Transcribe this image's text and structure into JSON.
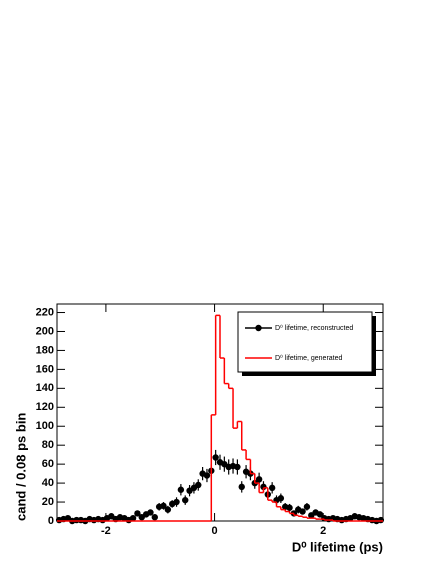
{
  "chart_data": {
    "type": "histogram",
    "x_label": "D⁰ lifetime (ps)",
    "y_label": "cand / 0.08 ps bin",
    "xlim": [
      -2.9,
      3.1
    ],
    "xticks": [
      -2,
      0,
      2
    ],
    "ylim": [
      0,
      229
    ],
    "yticks": [
      0,
      20,
      40,
      60,
      80,
      100,
      120,
      140,
      160,
      180,
      200,
      220
    ],
    "legend": "upper right",
    "series": [
      {
        "name": "D⁰ lifetime, reconstructed",
        "type": "errorbar",
        "color": "#000000",
        "x": [
          -2.86,
          -2.78,
          -2.7,
          -2.62,
          -2.54,
          -2.46,
          -2.38,
          -2.3,
          -2.22,
          -2.14,
          -2.06,
          -1.98,
          -1.9,
          -1.82,
          -1.74,
          -1.66,
          -1.58,
          -1.5,
          -1.42,
          -1.34,
          -1.26,
          -1.18,
          -1.1,
          -1.02,
          -0.94,
          -0.86,
          -0.78,
          -0.7,
          -0.62,
          -0.54,
          -0.46,
          -0.38,
          -0.3,
          -0.22,
          -0.14,
          -0.06,
          0.02,
          0.1,
          0.18,
          0.26,
          0.34,
          0.42,
          0.5,
          0.58,
          0.66,
          0.74,
          0.82,
          0.9,
          0.98,
          1.06,
          1.14,
          1.22,
          1.3,
          1.38,
          1.46,
          1.54,
          1.62,
          1.7,
          1.78,
          1.86,
          1.94,
          2.02,
          2.1,
          2.18,
          2.26,
          2.34,
          2.42,
          2.5,
          2.58,
          2.66,
          2.74,
          2.82,
          2.9,
          2.98,
          3.06
        ],
        "values": [
          1,
          2,
          3,
          0,
          1,
          1,
          0,
          2,
          1,
          2,
          1,
          3,
          5,
          2,
          4,
          3,
          1,
          3,
          8,
          4,
          7,
          9,
          4,
          15,
          16,
          12,
          18,
          20,
          33,
          22,
          32,
          35,
          38,
          50,
          48,
          53,
          67,
          62,
          60,
          57,
          58,
          57,
          36,
          52,
          50,
          40,
          44,
          36,
          28,
          35,
          22,
          24,
          15,
          14,
          8,
          12,
          10,
          15,
          6,
          9,
          7,
          3,
          2,
          3,
          2,
          1,
          2,
          3,
          5,
          4,
          3,
          2,
          1,
          0,
          1
        ],
        "errors": [
          1,
          1,
          2,
          0,
          1,
          1,
          0,
          1,
          1,
          1,
          1,
          2,
          2,
          1,
          2,
          2,
          1,
          2,
          3,
          2,
          3,
          3,
          2,
          4,
          4,
          4,
          4,
          5,
          6,
          5,
          6,
          6,
          6,
          7,
          7,
          7,
          8,
          8,
          8,
          8,
          8,
          8,
          6,
          7,
          7,
          6,
          7,
          6,
          5,
          6,
          5,
          5,
          4,
          4,
          3,
          4,
          3,
          4,
          2,
          3,
          3,
          2,
          1,
          2,
          1,
          1,
          1,
          2,
          2,
          2,
          2,
          1,
          1,
          0,
          1
        ]
      },
      {
        "name": "D⁰ lifetime, generated",
        "type": "step",
        "color": "#ff0000",
        "bins": [
          -0.06,
          0.02,
          0.1,
          0.18,
          0.26,
          0.34,
          0.42,
          0.5,
          0.58,
          0.66,
          0.74,
          0.82,
          0.9,
          0.98,
          1.06,
          1.14,
          1.22,
          1.3,
          1.38,
          1.46,
          1.54,
          1.62,
          1.7,
          1.78,
          1.86,
          1.94,
          2.02,
          2.1,
          2.18
        ],
        "values": [
          112,
          217,
          172,
          145,
          140,
          98,
          105,
          75,
          65,
          50,
          40,
          30,
          35,
          22,
          20,
          15,
          12,
          10,
          8,
          6,
          5,
          4,
          3,
          3,
          2,
          2,
          1,
          1
        ]
      }
    ]
  }
}
